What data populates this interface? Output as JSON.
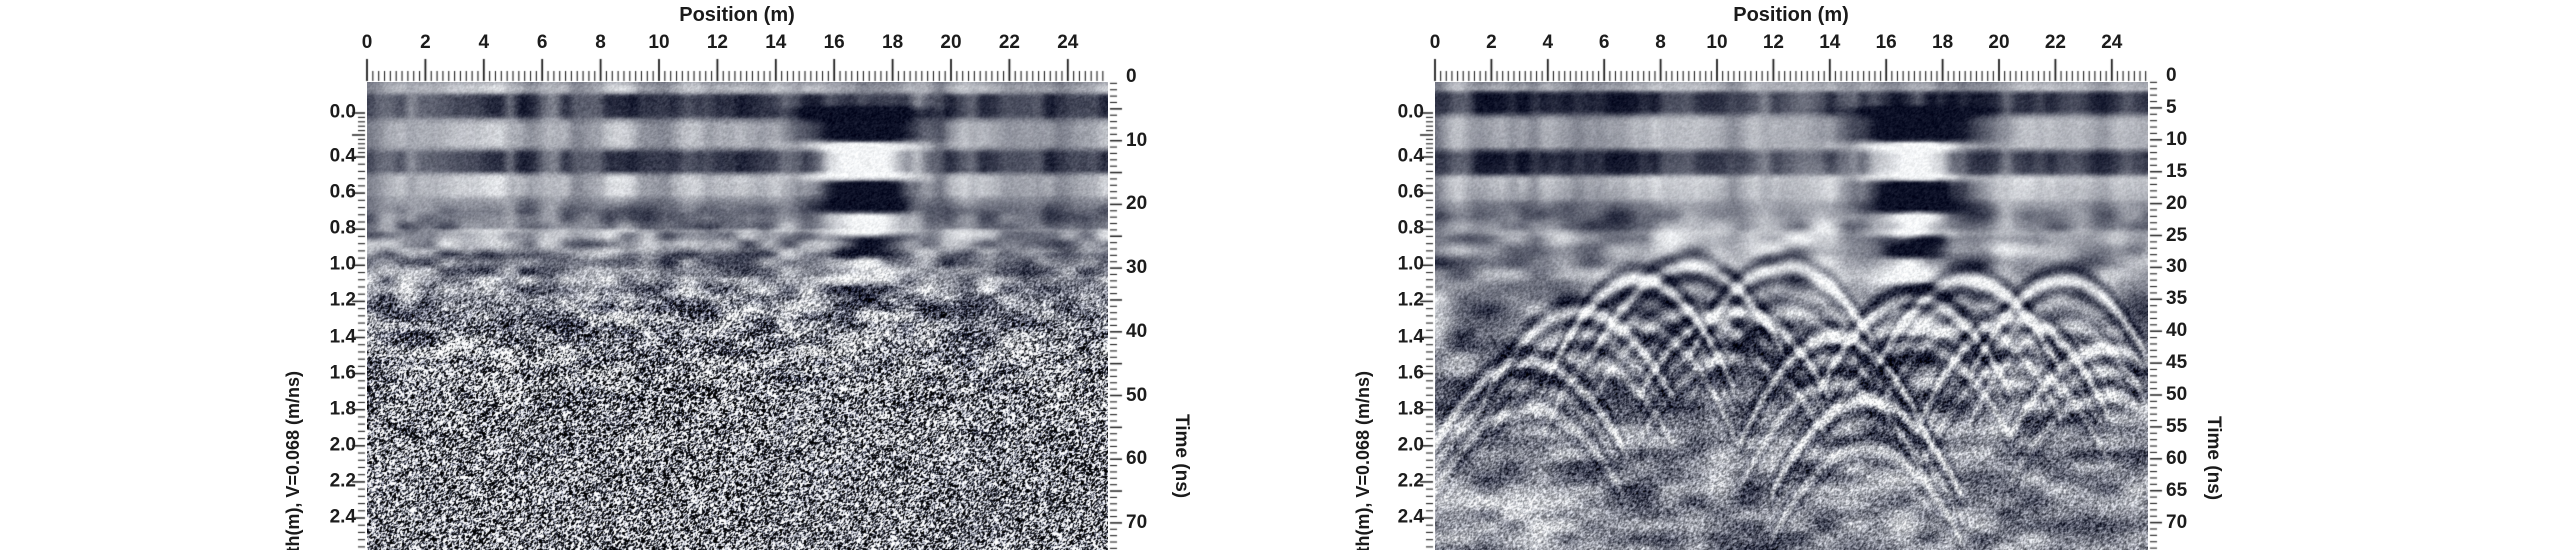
{
  "chart_data": [
    {
      "type": "heatmap",
      "panel": "left",
      "x_axis_title": "Position (m)",
      "x_tick_labels": [
        0,
        2,
        4,
        6,
        8,
        10,
        12,
        14,
        16,
        18,
        20,
        22,
        24
      ],
      "x_range_m": [
        0,
        25.4
      ],
      "left_axis_label": "th(m), V=0.068 (m/ns)",
      "velocity_m_per_ns": 0.068,
      "depth_tick_labels": [
        "0.0",
        "0.4",
        "0.6",
        "0.8",
        "1.0",
        "1.2",
        "1.4",
        "1.6",
        "1.8",
        "2.0",
        "2.2",
        "2.4"
      ],
      "right_axis_title": "Time (ns)",
      "time_tick_labels": [
        0,
        10,
        20,
        30,
        40,
        50,
        60,
        70
      ],
      "time_range_ns": [
        0,
        74
      ],
      "appearance": "raw GPR radargram: layered shallow reflections, strong black/white ringing anomaly at 16-18 m, dense salt-and-pepper noise below about 40 ns",
      "features": {
        "ringing_anomaly": {
          "center_position_m": 17.0,
          "width_m": 3.2,
          "top_time_ns": 4,
          "bottom_time_ns": 32
        },
        "noise_dominated_below_ns": 40,
        "small_diffractions": [
          [
            3.9,
            40
          ],
          [
            6.2,
            34
          ],
          [
            8.5,
            37
          ],
          [
            10.9,
            33
          ],
          [
            13.2,
            36
          ],
          [
            15.0,
            42
          ]
        ]
      }
    },
    {
      "type": "heatmap",
      "panel": "right",
      "x_axis_title": "Position (m)",
      "x_tick_labels": [
        0,
        2,
        4,
        6,
        8,
        10,
        12,
        14,
        16,
        18,
        20,
        22,
        24
      ],
      "x_range_m": [
        0,
        25.3
      ],
      "left_axis_label": "th(m), V=0.068 (m/ns)",
      "velocity_m_per_ns": 0.068,
      "depth_tick_labels": [
        "0.0",
        "0.4",
        "0.6",
        "0.8",
        "1.0",
        "1.2",
        "1.4",
        "1.6",
        "1.8",
        "2.0",
        "2.2",
        "2.4"
      ],
      "right_axis_title": "Time (ns)",
      "time_tick_labels": [
        0,
        5,
        10,
        15,
        20,
        25,
        30,
        35,
        40,
        45,
        50,
        55,
        60,
        65,
        70
      ],
      "time_range_ns": [
        0,
        74
      ],
      "appearance": "processed GPR radargram: layered shallow reflections, strong ringing anomaly at 16-18 m, smooth coherent overlapping diffraction hyperbolas in lower half",
      "features": {
        "ringing_anomaly": {
          "center_position_m": 17.0,
          "width_m": 3.2,
          "top_time_ns": 4,
          "bottom_time_ns": 42
        },
        "diffraction_apexes": [
          [
            3.3,
            44
          ],
          [
            5.1,
            36
          ],
          [
            7.2,
            31
          ],
          [
            9.0,
            29
          ],
          [
            10.6,
            36
          ],
          [
            12.4,
            29
          ],
          [
            14.2,
            40
          ],
          [
            15.3,
            50
          ],
          [
            17.0,
            34
          ],
          [
            18.9,
            31
          ],
          [
            20.6,
            37
          ],
          [
            22.3,
            31
          ],
          [
            23.8,
            42
          ]
        ]
      }
    }
  ],
  "palette": {
    "background": "#ffffff",
    "text": "#1c1c1c",
    "radargram_dark": "#0c1026",
    "radargram_mid": "#80838f",
    "radargram_light": "#f4f6f8"
  }
}
